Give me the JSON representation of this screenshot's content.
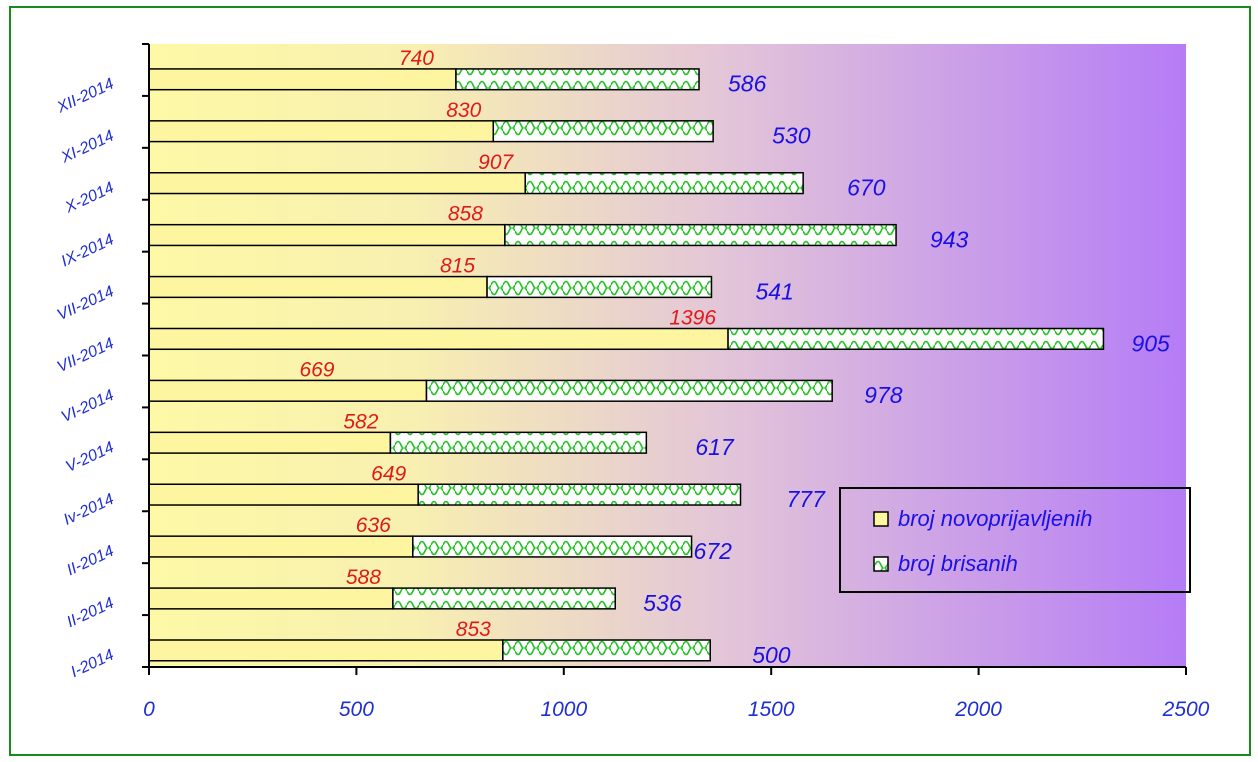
{
  "chart_data": {
    "type": "bar",
    "orientation": "horizontal",
    "stacked": true,
    "categories": [
      "I-2014",
      "II-2014",
      "II-2014",
      "Iv-2014",
      "V-2014",
      "VI-2014",
      "VII-2014",
      "VII-2014",
      "IX-2014",
      "X-2014",
      "XI-2014",
      "XII-2014"
    ],
    "series": [
      {
        "name": "broj novoprijavljenih",
        "values": [
          853,
          588,
          636,
          649,
          582,
          669,
          1396,
          815,
          858,
          907,
          830,
          740
        ],
        "color": "#fdf5a0"
      },
      {
        "name": "broj brisanih",
        "values": [
          500,
          536,
          672,
          777,
          617,
          978,
          905,
          541,
          943,
          670,
          530,
          586
        ],
        "color": "#ffffff",
        "pattern_color": "#22c222"
      }
    ],
    "xlim": [
      0,
      2500
    ],
    "x_ticks": [
      "0",
      "500",
      "1000",
      "1500",
      "2000",
      "2500"
    ],
    "legend_position": "right",
    "background_gradient": [
      "#fdf9a6",
      "#b57cf6"
    ],
    "grid": false
  }
}
